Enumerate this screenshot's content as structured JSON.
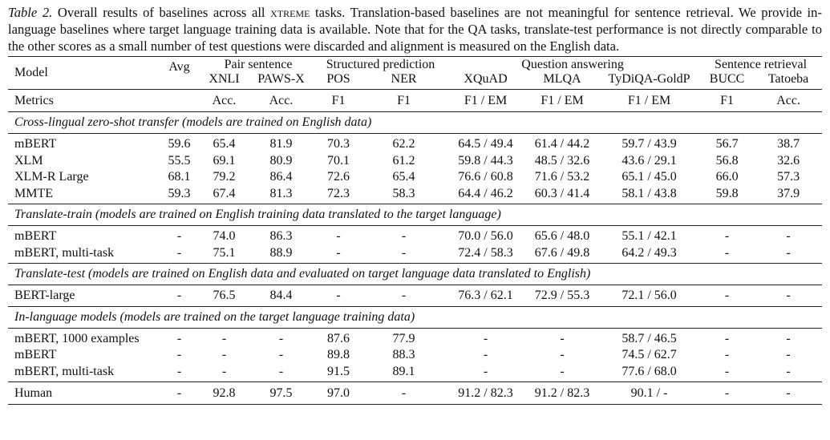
{
  "caption": {
    "label": "Table 2.",
    "text_before": " Overall results of baselines across all ",
    "benchmark": "xtreme",
    "text_after": " tasks. Translation-based baselines are not meaningful for sentence retrieval. We provide in-language baselines where target language training data is available. Note that for the QA tasks, translate-test performance is not directly comparable to the other scores as a small number of test questions were discarded and alignment is measured on the English data."
  },
  "header": {
    "model": "Model",
    "avg": "Avg",
    "groups": [
      "Pair sentence",
      "Structured prediction",
      "Question answering",
      "Sentence retrieval"
    ],
    "tasks": [
      "XNLI",
      "PAWS-X",
      "POS",
      "NER",
      "XQuAD",
      "MLQA",
      "TyDiQA-GoldP",
      "BUCC",
      "Tatoeba"
    ],
    "metrics_label": "Metrics",
    "metrics": [
      "Acc.",
      "Acc.",
      "F1",
      "F1",
      "F1 / EM",
      "F1 / EM",
      "F1 / EM",
      "F1",
      "Acc."
    ]
  },
  "sections": [
    {
      "title": "Cross-lingual zero-shot transfer (models are trained on English data)",
      "rows": [
        {
          "model": "mBERT",
          "cells": [
            "59.6",
            "65.4",
            "81.9",
            "70.3",
            "62.2",
            "64.5 / 49.4",
            "61.4 / 44.2",
            "59.7 / 43.9",
            "56.7",
            "38.7"
          ]
        },
        {
          "model": "XLM",
          "cells": [
            "55.5",
            "69.1",
            "80.9",
            "70.1",
            "61.2",
            "59.8 / 44.3",
            "48.5 / 32.6",
            "43.6 / 29.1",
            "56.8",
            "32.6"
          ]
        },
        {
          "model": "XLM-R Large",
          "cells": [
            "68.1",
            "79.2",
            "86.4",
            "72.6",
            "65.4",
            "76.6 / 60.8",
            "71.6 / 53.2",
            "65.1 / 45.0",
            "66.0",
            "57.3"
          ]
        },
        {
          "model": "MMTE",
          "cells": [
            "59.3",
            "67.4",
            "81.3",
            "72.3",
            "58.3",
            "64.4 / 46.2",
            "60.3 / 41.4",
            "58.1 / 43.8",
            "59.8",
            "37.9"
          ]
        }
      ]
    },
    {
      "title": "Translate-train (models are trained on English training data translated to the target language)",
      "rows": [
        {
          "model": "mBERT",
          "cells": [
            "-",
            "74.0",
            "86.3",
            "-",
            "-",
            "70.0 / 56.0",
            "65.6 / 48.0",
            "55.1 / 42.1",
            "-",
            "-"
          ]
        },
        {
          "model": "mBERT, multi-task",
          "cells": [
            "-",
            "75.1",
            "88.9",
            "-",
            "-",
            "72.4 / 58.3",
            "67.6 / 49.8",
            "64.2 / 49.3",
            "-",
            "-"
          ]
        }
      ]
    },
    {
      "title": "Translate-test (models are trained on English data and evaluated on target language data translated to English)",
      "rows": [
        {
          "model": "BERT-large",
          "cells": [
            "-",
            "76.5",
            "84.4",
            "-",
            "-",
            "76.3 / 62.1",
            "72.9 / 55.3",
            "72.1 / 56.0",
            "-",
            "-"
          ]
        }
      ]
    },
    {
      "title": "In-language models (models are trained on the target language training data)",
      "rows": [
        {
          "model": "mBERT, 1000 examples",
          "cells": [
            "-",
            "-",
            "-",
            "87.6",
            "77.9",
            "-",
            "-",
            "58.7 / 46.5",
            "-",
            "-"
          ]
        },
        {
          "model": "mBERT",
          "cells": [
            "-",
            "-",
            "-",
            "89.8",
            "88.3",
            "-",
            "-",
            "74.5 / 62.7",
            "-",
            "-"
          ]
        },
        {
          "model": "mBERT, multi-task",
          "cells": [
            "-",
            "-",
            "-",
            "91.5",
            "89.1",
            "-",
            "-",
            "77.6 / 68.0",
            "-",
            "-"
          ]
        }
      ]
    }
  ],
  "human": {
    "model": "Human",
    "cells": [
      "-",
      "92.8",
      "97.5",
      "97.0",
      "-",
      "91.2 / 82.3",
      "91.2 / 82.3",
      "90.1 / -",
      "-",
      "-"
    ]
  }
}
